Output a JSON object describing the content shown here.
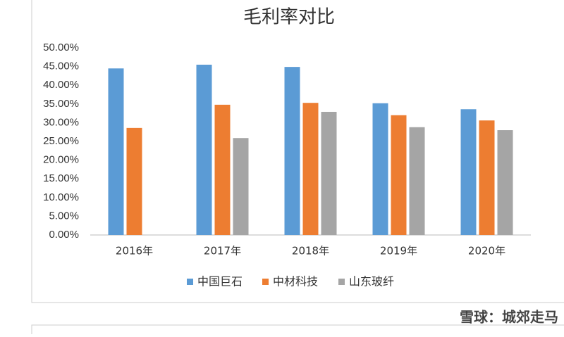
{
  "chart_data": {
    "type": "bar",
    "title": "毛利率对比",
    "categories": [
      "2016年",
      "2017年",
      "2018年",
      "2019年",
      "2020年"
    ],
    "series": [
      {
        "name": "中国巨石",
        "color": "#5b9bd5",
        "values": [
          44.5,
          45.5,
          44.9,
          35.2,
          33.6
        ]
      },
      {
        "name": "中材科技",
        "color": "#ed7d31",
        "values": [
          28.6,
          34.8,
          35.3,
          32.0,
          30.6
        ]
      },
      {
        "name": "山东玻纤",
        "color": "#a5a5a5",
        "values": [
          null,
          25.9,
          32.9,
          28.8,
          28.0
        ]
      }
    ],
    "ylim": [
      0,
      50
    ],
    "yticks": [
      {
        "value": 0,
        "label": "0.00%"
      },
      {
        "value": 5,
        "label": "5.00%"
      },
      {
        "value": 10,
        "label": "10.00%"
      },
      {
        "value": 15,
        "label": "15.00%"
      },
      {
        "value": 20,
        "label": "20.00%"
      },
      {
        "value": 25,
        "label": "25.00%"
      },
      {
        "value": 30,
        "label": "30.00%"
      },
      {
        "value": 35,
        "label": "35.00%"
      },
      {
        "value": 40,
        "label": "40.00%"
      },
      {
        "value": 45,
        "label": "45.00%"
      },
      {
        "value": 50,
        "label": "50.00%"
      }
    ],
    "grid": false,
    "legend": "bottom",
    "watermark": "雪球：城郊走马"
  }
}
